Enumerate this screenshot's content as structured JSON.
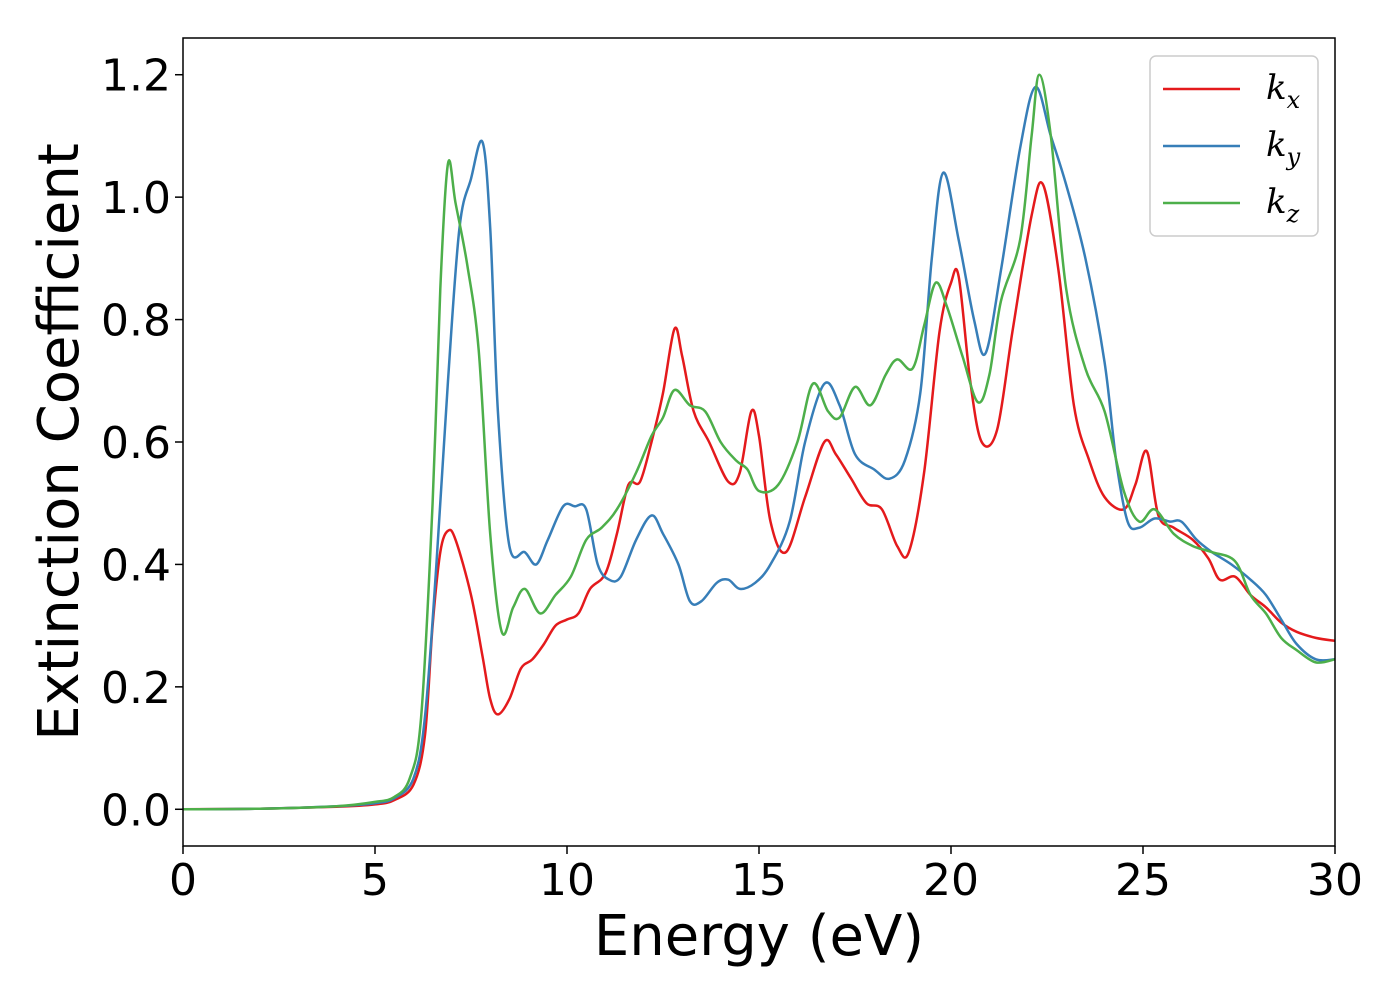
{
  "chart_data": {
    "type": "line",
    "xlabel": "Energy (eV)",
    "ylabel": "Extinction Coefficient",
    "xlim": [
      0,
      30
    ],
    "ylim": [
      -0.06,
      1.26
    ],
    "xticks": [
      0,
      5,
      10,
      15,
      20,
      25,
      30
    ],
    "yticks": [
      0.0,
      0.2,
      0.4,
      0.6,
      0.8,
      1.0,
      1.2
    ],
    "xtick_labels": [
      "0",
      "5",
      "10",
      "15",
      "20",
      "25",
      "30"
    ],
    "ytick_labels": [
      "0.0",
      "0.2",
      "0.4",
      "0.6",
      "0.8",
      "1.0",
      "1.2"
    ],
    "grid": false,
    "legend_position": "top-right",
    "series": [
      {
        "name": "k_x",
        "base": "k",
        "sub": "x",
        "color": "#e41a1c",
        "points": [
          [
            0,
            0
          ],
          [
            2,
            0.001
          ],
          [
            4,
            0.004
          ],
          [
            5,
            0.008
          ],
          [
            5.5,
            0.015
          ],
          [
            6,
            0.04
          ],
          [
            6.3,
            0.12
          ],
          [
            6.5,
            0.3
          ],
          [
            6.7,
            0.42
          ],
          [
            6.9,
            0.455
          ],
          [
            7.1,
            0.44
          ],
          [
            7.5,
            0.35
          ],
          [
            7.8,
            0.25
          ],
          [
            8.0,
            0.18
          ],
          [
            8.2,
            0.155
          ],
          [
            8.5,
            0.18
          ],
          [
            8.8,
            0.23
          ],
          [
            9.1,
            0.245
          ],
          [
            9.4,
            0.27
          ],
          [
            9.7,
            0.3
          ],
          [
            10,
            0.31
          ],
          [
            10.3,
            0.32
          ],
          [
            10.6,
            0.36
          ],
          [
            11,
            0.385
          ],
          [
            11.3,
            0.45
          ],
          [
            11.6,
            0.53
          ],
          [
            11.9,
            0.535
          ],
          [
            12.2,
            0.6
          ],
          [
            12.5,
            0.68
          ],
          [
            12.8,
            0.785
          ],
          [
            13.0,
            0.74
          ],
          [
            13.3,
            0.65
          ],
          [
            13.7,
            0.6
          ],
          [
            14.2,
            0.535
          ],
          [
            14.5,
            0.55
          ],
          [
            14.8,
            0.65
          ],
          [
            15.0,
            0.61
          ],
          [
            15.3,
            0.47
          ],
          [
            15.7,
            0.42
          ],
          [
            16.2,
            0.51
          ],
          [
            16.7,
            0.6
          ],
          [
            17.0,
            0.58
          ],
          [
            17.4,
            0.54
          ],
          [
            17.8,
            0.5
          ],
          [
            18.2,
            0.49
          ],
          [
            18.6,
            0.43
          ],
          [
            18.9,
            0.42
          ],
          [
            19.3,
            0.55
          ],
          [
            19.7,
            0.78
          ],
          [
            20.0,
            0.86
          ],
          [
            20.2,
            0.87
          ],
          [
            20.5,
            0.7
          ],
          [
            20.8,
            0.6
          ],
          [
            21.2,
            0.62
          ],
          [
            21.6,
            0.78
          ],
          [
            22.1,
            0.97
          ],
          [
            22.4,
            1.02
          ],
          [
            22.8,
            0.88
          ],
          [
            23.2,
            0.66
          ],
          [
            23.6,
            0.57
          ],
          [
            24.0,
            0.51
          ],
          [
            24.5,
            0.49
          ],
          [
            24.8,
            0.53
          ],
          [
            25.1,
            0.585
          ],
          [
            25.4,
            0.48
          ],
          [
            25.8,
            0.46
          ],
          [
            26.3,
            0.44
          ],
          [
            26.7,
            0.41
          ],
          [
            27.0,
            0.375
          ],
          [
            27.4,
            0.38
          ],
          [
            27.8,
            0.35
          ],
          [
            28.2,
            0.33
          ],
          [
            28.6,
            0.305
          ],
          [
            29.0,
            0.29
          ],
          [
            29.5,
            0.28
          ],
          [
            30,
            0.275
          ]
        ]
      },
      {
        "name": "k_y",
        "base": "k",
        "sub": "y",
        "color": "#377eb8",
        "points": [
          [
            0,
            0
          ],
          [
            2,
            0.001
          ],
          [
            4,
            0.005
          ],
          [
            5,
            0.01
          ],
          [
            5.5,
            0.018
          ],
          [
            6,
            0.05
          ],
          [
            6.3,
            0.15
          ],
          [
            6.6,
            0.4
          ],
          [
            6.9,
            0.7
          ],
          [
            7.2,
            0.95
          ],
          [
            7.5,
            1.03
          ],
          [
            7.8,
            1.09
          ],
          [
            8.0,
            0.95
          ],
          [
            8.2,
            0.65
          ],
          [
            8.5,
            0.43
          ],
          [
            8.9,
            0.42
          ],
          [
            9.2,
            0.4
          ],
          [
            9.5,
            0.44
          ],
          [
            9.9,
            0.495
          ],
          [
            10.2,
            0.495
          ],
          [
            10.5,
            0.49
          ],
          [
            10.8,
            0.4
          ],
          [
            11.1,
            0.375
          ],
          [
            11.4,
            0.38
          ],
          [
            11.8,
            0.44
          ],
          [
            12.2,
            0.48
          ],
          [
            12.5,
            0.45
          ],
          [
            12.9,
            0.4
          ],
          [
            13.2,
            0.34
          ],
          [
            13.5,
            0.34
          ],
          [
            13.9,
            0.37
          ],
          [
            14.2,
            0.375
          ],
          [
            14.5,
            0.36
          ],
          [
            14.9,
            0.37
          ],
          [
            15.3,
            0.4
          ],
          [
            15.8,
            0.47
          ],
          [
            16.2,
            0.6
          ],
          [
            16.7,
            0.695
          ],
          [
            17.1,
            0.66
          ],
          [
            17.5,
            0.58
          ],
          [
            18.0,
            0.555
          ],
          [
            18.4,
            0.54
          ],
          [
            18.8,
            0.57
          ],
          [
            19.2,
            0.68
          ],
          [
            19.5,
            0.9
          ],
          [
            19.8,
            1.04
          ],
          [
            20.2,
            0.93
          ],
          [
            20.6,
            0.8
          ],
          [
            20.9,
            0.745
          ],
          [
            21.3,
            0.88
          ],
          [
            21.8,
            1.08
          ],
          [
            22.2,
            1.18
          ],
          [
            22.6,
            1.1
          ],
          [
            23.0,
            1.02
          ],
          [
            23.5,
            0.9
          ],
          [
            24.0,
            0.73
          ],
          [
            24.3,
            0.57
          ],
          [
            24.6,
            0.47
          ],
          [
            24.9,
            0.46
          ],
          [
            25.3,
            0.475
          ],
          [
            25.7,
            0.47
          ],
          [
            26.0,
            0.47
          ],
          [
            26.4,
            0.44
          ],
          [
            26.8,
            0.42
          ],
          [
            27.3,
            0.4
          ],
          [
            27.8,
            0.375
          ],
          [
            28.2,
            0.35
          ],
          [
            28.6,
            0.31
          ],
          [
            29.0,
            0.27
          ],
          [
            29.5,
            0.245
          ],
          [
            30,
            0.245
          ]
        ]
      },
      {
        "name": "k_z",
        "base": "k",
        "sub": "z",
        "color": "#4daf4a",
        "points": [
          [
            0,
            0
          ],
          [
            2,
            0.001
          ],
          [
            4,
            0.005
          ],
          [
            5,
            0.012
          ],
          [
            5.5,
            0.02
          ],
          [
            5.9,
            0.05
          ],
          [
            6.2,
            0.15
          ],
          [
            6.5,
            0.5
          ],
          [
            6.7,
            0.85
          ],
          [
            6.9,
            1.055
          ],
          [
            7.1,
            0.99
          ],
          [
            7.4,
            0.89
          ],
          [
            7.7,
            0.75
          ],
          [
            8.0,
            0.45
          ],
          [
            8.3,
            0.29
          ],
          [
            8.6,
            0.33
          ],
          [
            8.9,
            0.36
          ],
          [
            9.3,
            0.32
          ],
          [
            9.7,
            0.35
          ],
          [
            10.1,
            0.38
          ],
          [
            10.5,
            0.44
          ],
          [
            10.9,
            0.46
          ],
          [
            11.3,
            0.49
          ],
          [
            11.8,
            0.55
          ],
          [
            12.2,
            0.61
          ],
          [
            12.5,
            0.64
          ],
          [
            12.8,
            0.685
          ],
          [
            13.2,
            0.66
          ],
          [
            13.6,
            0.65
          ],
          [
            14.0,
            0.6
          ],
          [
            14.4,
            0.57
          ],
          [
            14.7,
            0.555
          ],
          [
            15.0,
            0.52
          ],
          [
            15.5,
            0.53
          ],
          [
            16.0,
            0.6
          ],
          [
            16.4,
            0.695
          ],
          [
            16.8,
            0.65
          ],
          [
            17.1,
            0.64
          ],
          [
            17.5,
            0.69
          ],
          [
            17.9,
            0.66
          ],
          [
            18.3,
            0.71
          ],
          [
            18.6,
            0.735
          ],
          [
            19.0,
            0.72
          ],
          [
            19.3,
            0.79
          ],
          [
            19.6,
            0.86
          ],
          [
            19.9,
            0.82
          ],
          [
            20.3,
            0.74
          ],
          [
            20.7,
            0.665
          ],
          [
            21.0,
            0.71
          ],
          [
            21.3,
            0.83
          ],
          [
            21.8,
            0.93
          ],
          [
            22.1,
            1.1
          ],
          [
            22.3,
            1.2
          ],
          [
            22.6,
            1.1
          ],
          [
            23.0,
            0.85
          ],
          [
            23.5,
            0.72
          ],
          [
            24.0,
            0.65
          ],
          [
            24.5,
            0.52
          ],
          [
            24.9,
            0.47
          ],
          [
            25.3,
            0.49
          ],
          [
            25.8,
            0.45
          ],
          [
            26.3,
            0.43
          ],
          [
            26.8,
            0.42
          ],
          [
            27.4,
            0.405
          ],
          [
            27.8,
            0.35
          ],
          [
            28.2,
            0.32
          ],
          [
            28.6,
            0.28
          ],
          [
            29.0,
            0.26
          ],
          [
            29.5,
            0.24
          ],
          [
            30,
            0.245
          ]
        ]
      }
    ]
  }
}
